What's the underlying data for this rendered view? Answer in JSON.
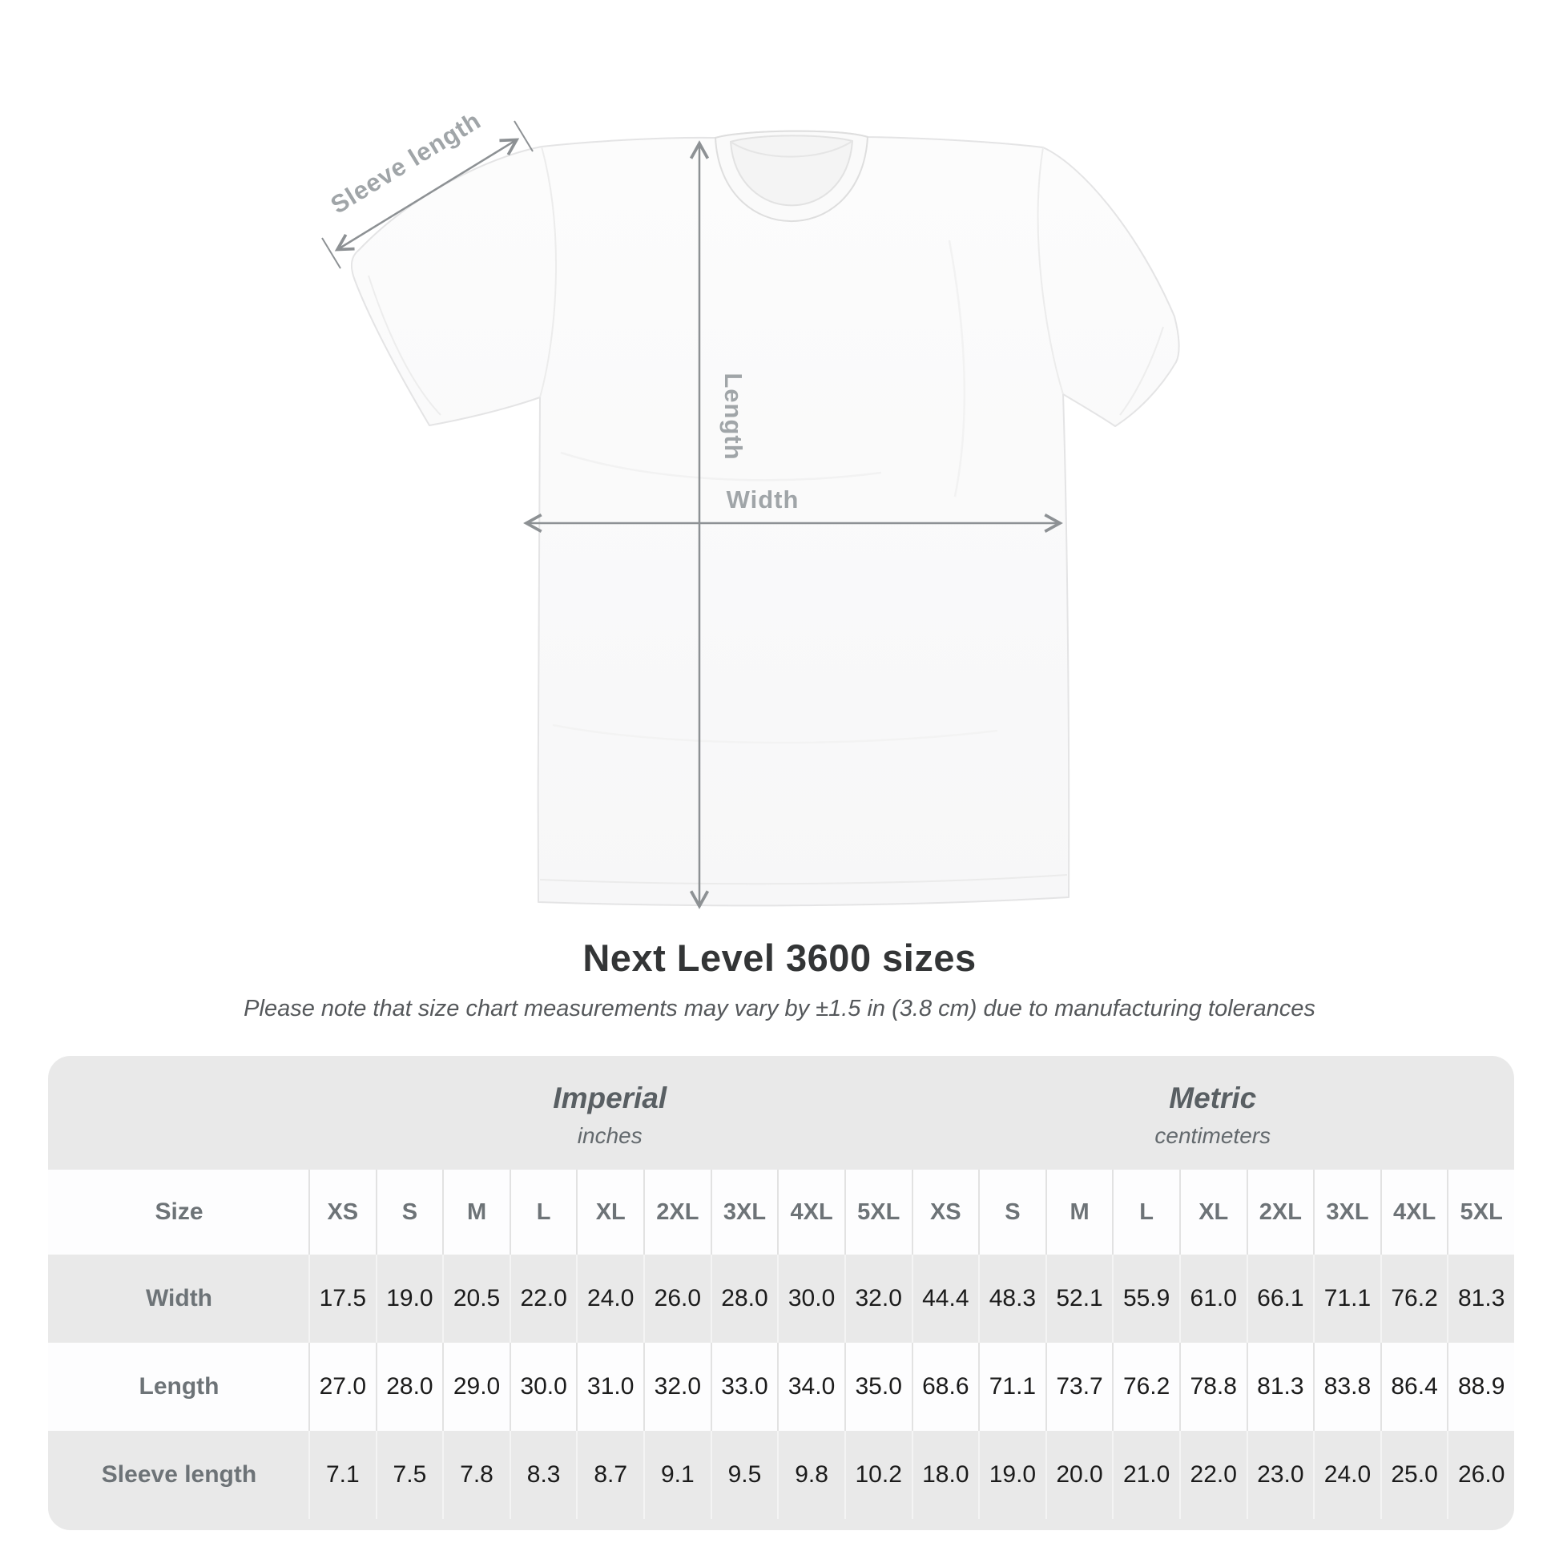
{
  "diagram": {
    "labels": {
      "sleeve": "Sleeve length",
      "length": "Length",
      "width": "Width"
    },
    "arrow_color": "#8d9194",
    "label_color": "#a0a5a8"
  },
  "title": "Next Level 3600 sizes",
  "subtitle": "Please note that size chart measurements may vary by ±1.5 in (3.8 cm) due to manufacturing tolerances",
  "table": {
    "sections": [
      {
        "name": "Imperial",
        "unit": "inches"
      },
      {
        "name": "Metric",
        "unit": "centimeters"
      }
    ],
    "size_row_label": "Size",
    "sizes": [
      "XS",
      "S",
      "M",
      "L",
      "XL",
      "2XL",
      "3XL",
      "4XL",
      "5XL"
    ],
    "rows": [
      {
        "label": "Width",
        "imperial": [
          "17.5",
          "19.0",
          "20.5",
          "22.0",
          "24.0",
          "26.0",
          "28.0",
          "30.0",
          "32.0"
        ],
        "metric": [
          "44.4",
          "48.3",
          "52.1",
          "55.9",
          "61.0",
          "66.1",
          "71.1",
          "76.2",
          "81.3"
        ]
      },
      {
        "label": "Length",
        "imperial": [
          "27.0",
          "28.0",
          "29.0",
          "30.0",
          "31.0",
          "32.0",
          "33.0",
          "34.0",
          "35.0"
        ],
        "metric": [
          "68.6",
          "71.1",
          "73.7",
          "76.2",
          "78.8",
          "81.3",
          "83.8",
          "86.4",
          "88.9"
        ]
      },
      {
        "label": "Sleeve length",
        "imperial": [
          "7.1",
          "7.5",
          "7.8",
          "8.3",
          "8.7",
          "9.1",
          "9.5",
          "9.8",
          "10.2"
        ],
        "metric": [
          "18.0",
          "19.0",
          "20.0",
          "21.0",
          "22.0",
          "23.0",
          "24.0",
          "25.0",
          "26.0"
        ]
      }
    ]
  }
}
